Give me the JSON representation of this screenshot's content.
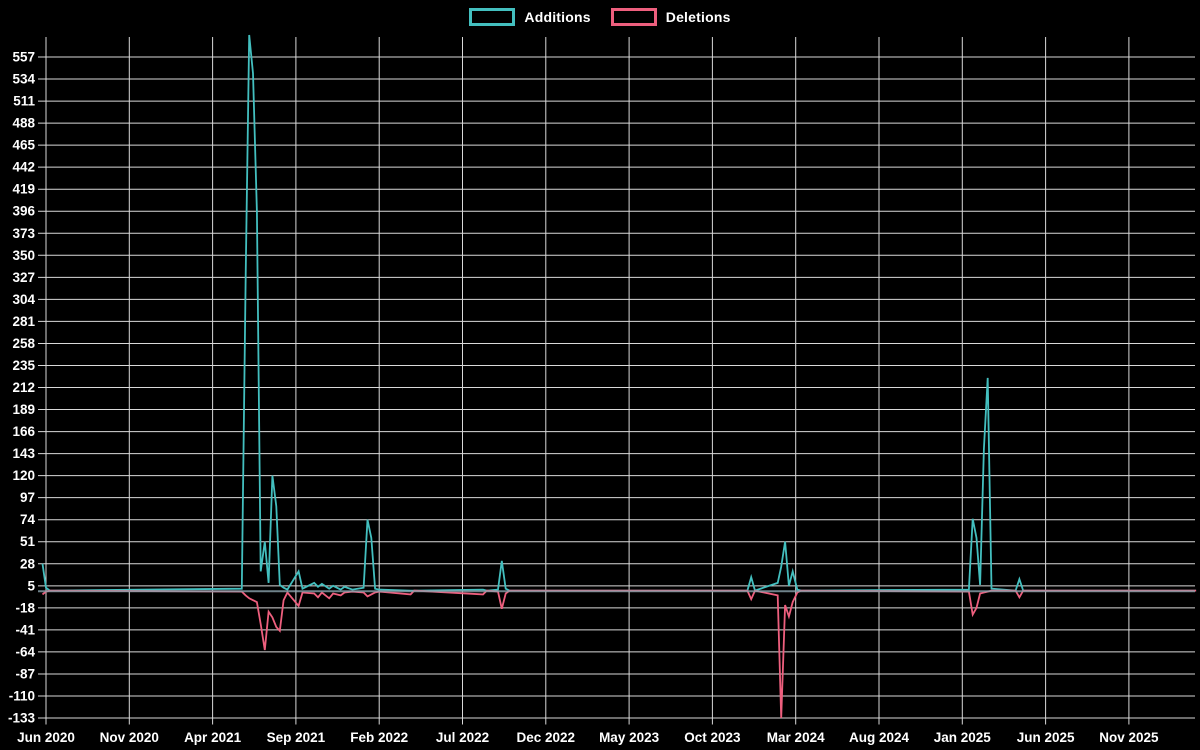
{
  "chart_data": {
    "type": "line",
    "title": "",
    "xlabel": "",
    "ylabel": "",
    "grid": true,
    "legend_position": "top-center",
    "background_color": "#000000",
    "grid_color": "#d9d9d9",
    "tick_label_color": "#ffffff",
    "zero_baseline_color": "#8aa3ad",
    "ylim": [
      -133,
      580
    ],
    "y_ticks": [
      557,
      534,
      511,
      488,
      465,
      442,
      419,
      396,
      373,
      350,
      327,
      304,
      281,
      258,
      235,
      212,
      189,
      166,
      143,
      120,
      97,
      74,
      51,
      28,
      5,
      -18,
      -41,
      -64,
      -87,
      -110,
      -133
    ],
    "x_ticks": [
      "Jun 2020",
      "Nov 2020",
      "Apr 2021",
      "Sep 2021",
      "Feb 2022",
      "Jul 2022",
      "Dec 2022",
      "May 2023",
      "Oct 2023",
      "Mar 2024",
      "Aug 2024",
      "Jan 2025",
      "Jun 2025",
      "Nov 2025"
    ],
    "x_tick_interval_months": 5,
    "legend": [
      {
        "label": "Additions",
        "color": "#43bfbf"
      },
      {
        "label": "Deletions",
        "color": "#ee5f7e"
      }
    ],
    "weeks": [
      "2020-05-25",
      "2020-06-01",
      "2020-06-08",
      "2021-05-24",
      "2021-05-31",
      "2021-06-07",
      "2021-06-14",
      "2021-06-21",
      "2021-06-28",
      "2021-07-05",
      "2021-07-12",
      "2021-07-19",
      "2021-07-26",
      "2021-08-02",
      "2021-08-09",
      "2021-08-16",
      "2021-09-06",
      "2021-09-13",
      "2021-10-04",
      "2021-10-11",
      "2021-10-18",
      "2021-11-01",
      "2021-11-08",
      "2021-11-22",
      "2021-11-29",
      "2021-12-13",
      "2022-01-03",
      "2022-01-10",
      "2022-01-17",
      "2022-01-24",
      "2022-01-31",
      "2022-03-28",
      "2022-04-04",
      "2022-08-08",
      "2022-08-15",
      "2022-09-05",
      "2022-09-12",
      "2022-09-19",
      "2022-09-26",
      "2023-12-04",
      "2023-12-11",
      "2023-12-18",
      "2024-01-29",
      "2024-02-05",
      "2024-02-12",
      "2024-02-19",
      "2024-02-26",
      "2024-03-04",
      "2024-03-11",
      "2025-01-13",
      "2025-01-20",
      "2025-01-27",
      "2025-02-03",
      "2025-02-10",
      "2025-02-17",
      "2025-02-24",
      "2025-04-07",
      "2025-04-14",
      "2025-04-21",
      "2026-03-02"
    ],
    "series": [
      {
        "name": "Additions",
        "values": [
          28,
          3,
          0,
          2,
          330,
          580,
          540,
          396,
          20,
          51,
          8,
          120,
          88,
          6,
          3,
          1,
          20,
          2,
          8,
          4,
          7,
          2,
          5,
          1,
          4,
          1,
          3,
          74,
          55,
          2,
          1,
          0,
          0,
          1,
          0,
          1,
          31,
          2,
          0,
          0,
          14,
          0,
          8,
          25,
          51,
          5,
          20,
          1,
          0,
          1,
          75,
          55,
          6,
          148,
          222,
          2,
          0,
          12,
          0,
          0
        ]
      },
      {
        "name": "Deletions",
        "values": [
          -4,
          -1,
          0,
          -1,
          -5,
          -8,
          -10,
          -12,
          -35,
          -62,
          -22,
          -28,
          -38,
          -42,
          -10,
          -2,
          -16,
          -2,
          -3,
          -7,
          -2,
          -8,
          -3,
          -5,
          -2,
          -1,
          -2,
          -6,
          -4,
          -2,
          -1,
          -4,
          0,
          -4,
          0,
          -1,
          -19,
          -3,
          0,
          0,
          -9,
          0,
          -5,
          -133,
          -15,
          -27,
          -12,
          -2,
          0,
          -1,
          -25,
          -18,
          -3,
          -2,
          -1,
          0,
          0,
          -7,
          0,
          0
        ]
      }
    ]
  }
}
